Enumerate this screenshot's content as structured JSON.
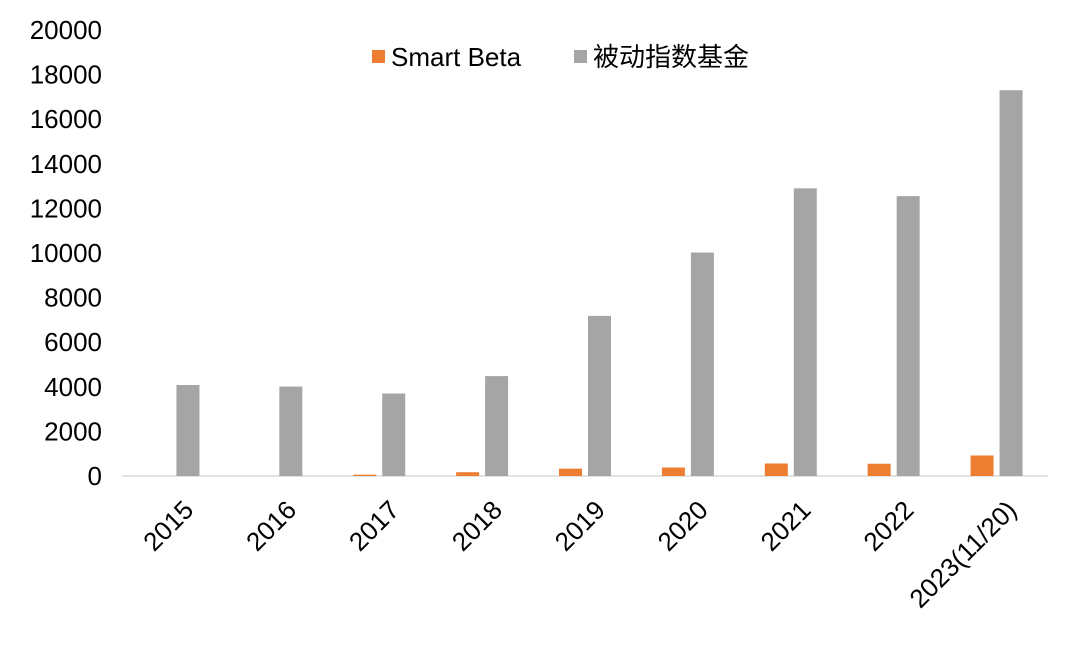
{
  "chart_data": {
    "type": "bar",
    "title": "",
    "xlabel": "",
    "ylabel": "",
    "categories": [
      "2015",
      "2016",
      "2017",
      "2018",
      "2019",
      "2020",
      "2021",
      "2022",
      "2023(11/20)"
    ],
    "series": [
      {
        "name": "Smart Beta",
        "color": "#ED7D31",
        "values": [
          0,
          0,
          60,
          170,
          330,
          380,
          560,
          550,
          920
        ]
      },
      {
        "name": "被动指数基金",
        "color": "#A5A5A5",
        "values": [
          4080,
          4010,
          3700,
          4480,
          7180,
          10020,
          12900,
          12550,
          17300
        ]
      }
    ],
    "ylim": [
      0,
      20000
    ],
    "yticks": [
      0,
      2000,
      4000,
      6000,
      8000,
      10000,
      12000,
      14000,
      16000,
      18000,
      20000
    ],
    "grid": false,
    "legend_position": "top-center"
  }
}
